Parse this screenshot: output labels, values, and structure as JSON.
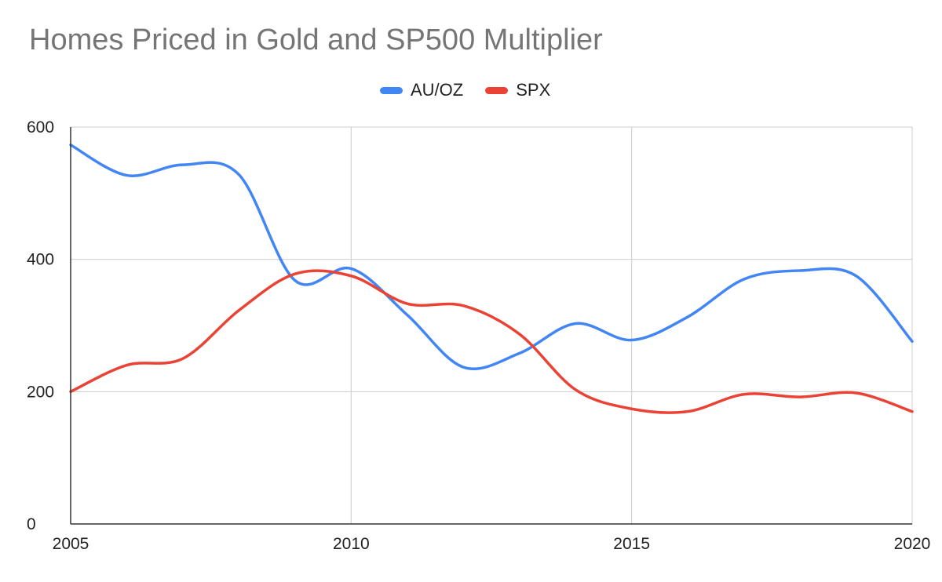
{
  "chart_data": {
    "type": "line",
    "title": "Homes Priced in Gold and SP500 Multiplier",
    "xlabel": "",
    "ylabel": "",
    "xlim": [
      2005,
      2020
    ],
    "ylim": [
      0,
      600
    ],
    "x_ticks": [
      "2005",
      "2010",
      "2015",
      "2020"
    ],
    "y_ticks": [
      "0",
      "200",
      "400",
      "600"
    ],
    "grid": true,
    "legend_position": "top-center",
    "x": [
      2005,
      2006,
      2007,
      2008,
      2009,
      2010,
      2011,
      2012,
      2013,
      2014,
      2015,
      2016,
      2017,
      2018,
      2019,
      2020
    ],
    "series": [
      {
        "name": "AU/OZ",
        "color": "#4285f4",
        "values": [
          573,
          527,
          543,
          528,
          368,
          386,
          316,
          237,
          258,
          303,
          278,
          313,
          370,
          383,
          375,
          276
        ]
      },
      {
        "name": "SPX",
        "color": "#ea4335",
        "values": [
          200,
          240,
          250,
          323,
          378,
          375,
          333,
          330,
          287,
          203,
          174,
          170,
          196,
          192,
          198,
          170
        ]
      }
    ]
  }
}
